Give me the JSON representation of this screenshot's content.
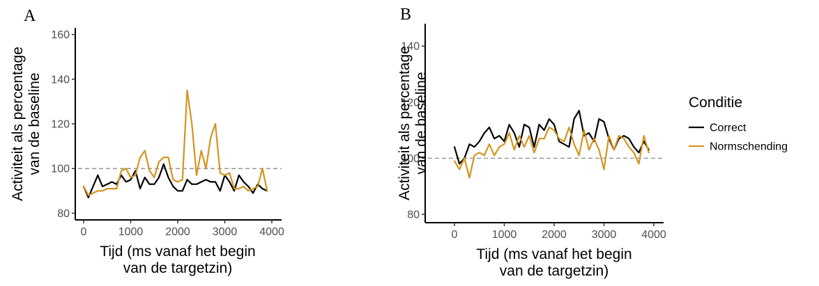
{
  "chart_data": [
    {
      "type": "line",
      "panel_label": "A",
      "xlabel": [
        "Tijd (ms vanaf het begin",
        "van de targetzin)"
      ],
      "ylabel": [
        "Activiteit als percentage",
        "van de baseline"
      ],
      "xlim": [
        -150,
        4100
      ],
      "ylim": [
        77,
        163
      ],
      "xticks": [
        0,
        1000,
        2000,
        3000,
        4000
      ],
      "yticks": [
        80,
        100,
        120,
        140,
        160
      ],
      "reference_line": 100,
      "x": [
        0,
        100,
        200,
        300,
        400,
        500,
        600,
        700,
        800,
        900,
        1000,
        1100,
        1200,
        1300,
        1400,
        1500,
        1600,
        1700,
        1800,
        1900,
        2000,
        2100,
        2200,
        2300,
        2400,
        2500,
        2600,
        2700,
        2800,
        2900,
        3000,
        3100,
        3200,
        3300,
        3400,
        3500,
        3600,
        3700,
        3800,
        3900
      ],
      "series": [
        {
          "name": "Correct",
          "color": "#000000",
          "values": [
            92,
            87,
            92,
            97,
            92,
            93,
            94,
            93,
            97,
            94,
            95,
            99,
            91,
            96,
            93,
            93,
            96,
            102,
            96,
            92,
            90,
            90,
            95,
            93,
            93,
            94,
            95,
            94,
            94,
            90,
            97,
            94,
            90,
            97,
            94,
            92,
            89,
            93,
            91,
            90
          ]
        },
        {
          "name": "Normschending",
          "color": "#D4941E",
          "values": [
            92,
            88,
            89,
            90,
            90,
            91,
            91,
            91,
            99,
            100,
            96,
            97,
            105,
            108,
            99,
            96,
            103,
            105,
            105,
            95,
            94,
            95,
            135,
            120,
            97,
            108,
            100,
            114,
            120,
            98,
            97,
            98,
            91,
            91,
            92,
            90,
            91,
            92,
            100,
            90
          ]
        }
      ],
      "grid": false
    },
    {
      "type": "line",
      "panel_label": "B",
      "xlabel": [
        "Tijd (ms vanaf het begin",
        "van de targetzin)"
      ],
      "ylabel": [
        "Activiteit als percentage",
        "van de baseline"
      ],
      "xlim": [
        -150,
        4100
      ],
      "ylim": [
        77,
        148
      ],
      "xticks": [
        0,
        1000,
        2000,
        3000,
        4000
      ],
      "yticks": [
        80,
        100,
        120,
        140
      ],
      "reference_line": 100,
      "x": [
        0,
        100,
        200,
        300,
        400,
        500,
        600,
        700,
        800,
        900,
        1000,
        1100,
        1200,
        1300,
        1400,
        1500,
        1600,
        1700,
        1800,
        1900,
        2000,
        2100,
        2200,
        2300,
        2400,
        2500,
        2600,
        2700,
        2800,
        2900,
        3000,
        3100,
        3200,
        3300,
        3400,
        3500,
        3600,
        3700,
        3800,
        3900
      ],
      "series": [
        {
          "name": "Correct",
          "color": "#000000",
          "values": [
            104,
            98,
            100,
            105,
            104,
            106,
            109,
            111,
            107,
            108,
            106,
            112,
            109,
            104,
            112,
            111,
            104,
            112,
            110,
            114,
            112,
            106,
            105,
            104,
            114,
            117,
            108,
            109,
            106,
            114,
            113,
            107,
            103,
            107,
            108,
            107,
            104,
            102,
            106,
            103
          ]
        },
        {
          "name": "Normschending",
          "color": "#D4941E",
          "values": [
            99,
            96,
            100,
            93,
            101,
            102,
            101,
            105,
            101,
            104,
            105,
            109,
            103,
            108,
            104,
            108,
            102,
            107,
            107,
            111,
            110,
            107,
            106,
            111,
            105,
            101,
            110,
            103,
            107,
            103,
            96,
            108,
            103,
            108,
            107,
            104,
            102,
            98,
            108,
            102
          ]
        }
      ],
      "grid": false
    }
  ],
  "legend": {
    "title": "Conditie",
    "position": "right",
    "items": [
      {
        "label": "Correct",
        "color": "#000000"
      },
      {
        "label": "Normschending",
        "color": "#D4941E"
      }
    ]
  },
  "colors": {
    "correct": "#000000",
    "normschending": "#D4941E",
    "reference_line": "#8c8c8c"
  }
}
